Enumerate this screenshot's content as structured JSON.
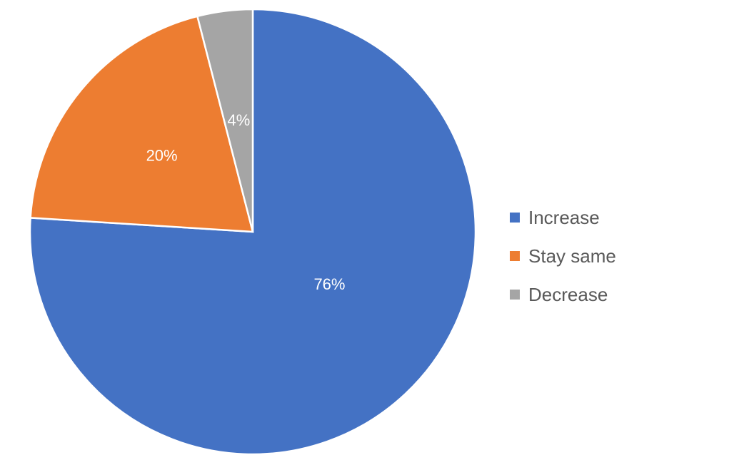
{
  "chart_data": {
    "type": "pie",
    "title": "",
    "categories": [
      "Increase",
      "Stay same",
      "Decrease"
    ],
    "values": [
      76,
      20,
      4
    ],
    "data_labels": [
      "76%",
      "20%",
      "4%"
    ],
    "colors": [
      "#4472C4",
      "#ED7D31",
      "#A5A5A5"
    ],
    "start_angle_deg": 0,
    "direction": "clockwise",
    "legend_position": "right"
  },
  "legend": {
    "items": [
      {
        "label": "Increase",
        "color": "#4472C4"
      },
      {
        "label": "Stay same",
        "color": "#ED7D31"
      },
      {
        "label": "Decrease",
        "color": "#A5A5A5"
      }
    ]
  }
}
